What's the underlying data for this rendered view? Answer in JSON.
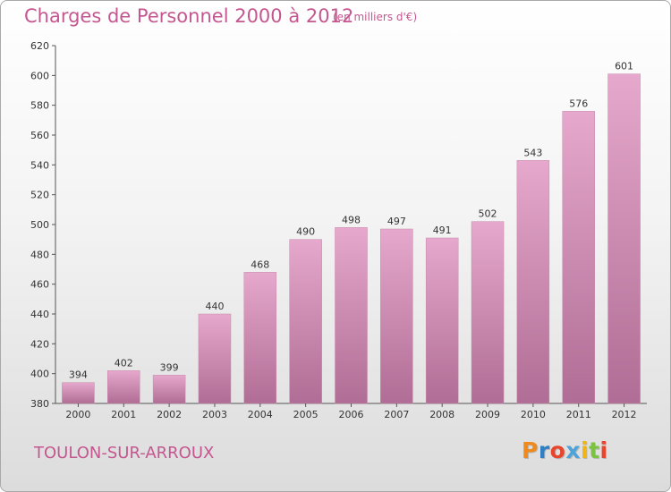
{
  "header": {
    "title": "Charges de Personnel 2000 à 2012",
    "subtitle": "(en milliers d'€)"
  },
  "footer": {
    "town": "TOULON-SUR-ARROUX",
    "logo": "Proxiti"
  },
  "colors": {
    "title": "#c4578f",
    "bar_top": "#e6a8cc",
    "bar_bottom": "#b06d95",
    "logo_letters": [
      "#f08a1c",
      "#2e7fc4",
      "#e8452c",
      "#4fa3d9",
      "#f0b418",
      "#7cc243",
      "#e8452c"
    ]
  },
  "chart_data": {
    "type": "bar",
    "title": "Charges de Personnel 2000 à 2012",
    "subtitle": "(en milliers d'€)",
    "categories": [
      "2000",
      "2001",
      "2002",
      "2003",
      "2004",
      "2005",
      "2006",
      "2007",
      "2008",
      "2009",
      "2010",
      "2011",
      "2012"
    ],
    "values": [
      394,
      402,
      399,
      440,
      468,
      490,
      498,
      497,
      491,
      502,
      543,
      576,
      601
    ],
    "ylim": [
      380,
      620
    ],
    "yticks": [
      380,
      400,
      420,
      440,
      460,
      480,
      500,
      520,
      540,
      560,
      580,
      600,
      620
    ],
    "grid": false,
    "data_labels": true
  }
}
